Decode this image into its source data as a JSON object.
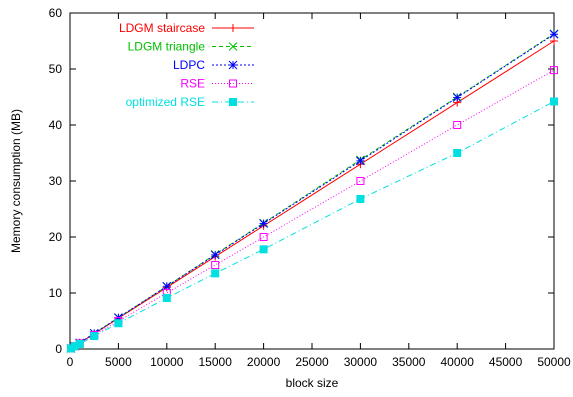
{
  "chart_data": {
    "type": "line",
    "title": "",
    "xlabel": "block size",
    "ylabel": "Memory consumption (MB)",
    "xlim": [
      0,
      50000
    ],
    "ylim": [
      0,
      60
    ],
    "xticks": [
      0,
      5000,
      10000,
      15000,
      20000,
      25000,
      30000,
      35000,
      40000,
      45000,
      50000
    ],
    "yticks": [
      0,
      10,
      20,
      30,
      40,
      50,
      60
    ],
    "grid": false,
    "legend_position": "top-left",
    "x": [
      100,
      500,
      1000,
      2500,
      5000,
      10000,
      15000,
      20000,
      30000,
      40000,
      50000
    ],
    "series": [
      {
        "name": "LDGM staircase",
        "color": "#ff0000",
        "marker": "plus",
        "dash": "",
        "values": [
          0.1,
          0.5,
          1.1,
          2.7,
          5.5,
          11.0,
          16.5,
          22.0,
          33.0,
          44.0,
          55.0
        ]
      },
      {
        "name": "LDGM triangle",
        "color": "#00c000",
        "marker": "cross",
        "dash": "4,3",
        "values": [
          0.1,
          0.5,
          1.1,
          2.8,
          5.6,
          11.2,
          16.9,
          22.5,
          33.8,
          45.0,
          56.3
        ]
      },
      {
        "name": "LDPC",
        "color": "#0000ff",
        "marker": "star",
        "dash": "2,2",
        "values": [
          0.1,
          0.5,
          1.1,
          2.8,
          5.6,
          11.2,
          16.8,
          22.4,
          33.6,
          44.9,
          56.2
        ]
      },
      {
        "name": "RSE",
        "color": "#ff00ff",
        "marker": "square-open",
        "dash": "1,2",
        "values": [
          0.1,
          0.5,
          1.0,
          2.5,
          5.0,
          10.0,
          15.0,
          20.0,
          30.0,
          40.0,
          49.8
        ]
      },
      {
        "name": "optimized RSE",
        "color": "#00e0e0",
        "marker": "square-filled",
        "dash": "6,3,1,3",
        "values": [
          0.1,
          0.5,
          0.9,
          2.3,
          4.6,
          9.1,
          13.5,
          17.8,
          26.8,
          35.0,
          44.2
        ]
      }
    ]
  }
}
